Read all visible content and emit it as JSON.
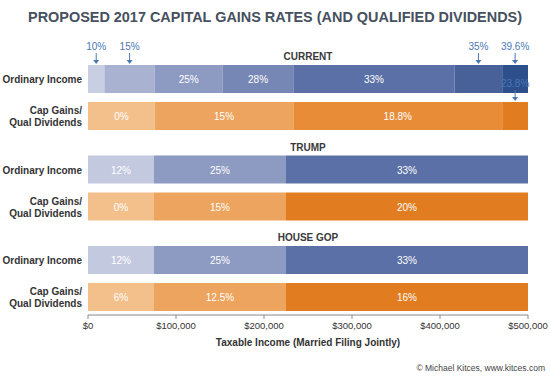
{
  "chart_data": {
    "type": "bar",
    "orientation": "horizontal",
    "stacked": true,
    "grid": false,
    "title": "PROPOSED 2017 CAPITAL GAINS RATES (AND QUALIFIED DIVIDENDS)",
    "x_label": "Taxable Income (Married Filing Jointly)",
    "credit": "© Michael Kitces, www.kitces.com",
    "xlim": [
      0,
      500000
    ],
    "xticks": [
      {
        "value": 0,
        "label": "$0"
      },
      {
        "value": 100000,
        "label": "$100,000"
      },
      {
        "value": 200000,
        "label": "$200,000"
      },
      {
        "value": 300000,
        "label": "$300,000"
      },
      {
        "value": 400000,
        "label": "$400,000"
      },
      {
        "value": 500000,
        "label": "$500,000"
      }
    ],
    "groups": [
      {
        "name": "CURRENT",
        "bars": [
          {
            "category": [
              "Ordinary Income"
            ],
            "values": [
              18650,
              57250,
              77200,
              80250,
              183350,
              54000,
              29300
            ],
            "labels": [
              "10%",
              "15%",
              "25%",
              "28%",
              "33%",
              "35%",
              "39.6%"
            ],
            "colors": [
              "#c9cfe3",
              "#a9b2d0",
              "#8d9ac2",
              "#7687b6",
              "#5a70a6",
              "#486198",
              "#2d4f8c"
            ]
          },
          {
            "category": [
              "Cap Gains/",
              "Qual Dividends"
            ],
            "values": [
              75900,
              157450,
              237350,
              29300
            ],
            "labels": [
              "0%",
              "15%",
              "18.8%",
              "23.8%"
            ],
            "colors": [
              "#f3c08c",
              "#eca45f",
              "#e88c38",
              "#e17d20"
            ]
          }
        ]
      },
      {
        "name": "TRUMP",
        "bars": [
          {
            "category": [
              "Ordinary Income"
            ],
            "values": [
              75000,
              150000,
              275000
            ],
            "labels": [
              "12%",
              "25%",
              "33%"
            ],
            "colors": [
              "#c3c9df",
              "#8d9ac2",
              "#5a70a6"
            ]
          },
          {
            "category": [
              "Cap Gains/",
              "Qual Dividends"
            ],
            "values": [
              75000,
              150000,
              275000
            ],
            "labels": [
              "0%",
              "15%",
              "20%"
            ],
            "colors": [
              "#f3c08c",
              "#eca45f",
              "#e17d20"
            ]
          }
        ]
      },
      {
        "name": "HOUSE GOP",
        "bars": [
          {
            "category": [
              "Ordinary Income"
            ],
            "values": [
              75000,
              150000,
              275000
            ],
            "labels": [
              "12%",
              "25%",
              "33%"
            ],
            "colors": [
              "#c3c9df",
              "#8d9ac2",
              "#5a70a6"
            ]
          },
          {
            "category": [
              "Cap Gains/",
              "Qual Dividends"
            ],
            "values": [
              75000,
              150000,
              275000
            ],
            "labels": [
              "6%",
              "12.5%",
              "16%"
            ],
            "colors": [
              "#f3c08c",
              "#eca45f",
              "#e17d20"
            ]
          }
        ]
      }
    ]
  }
}
